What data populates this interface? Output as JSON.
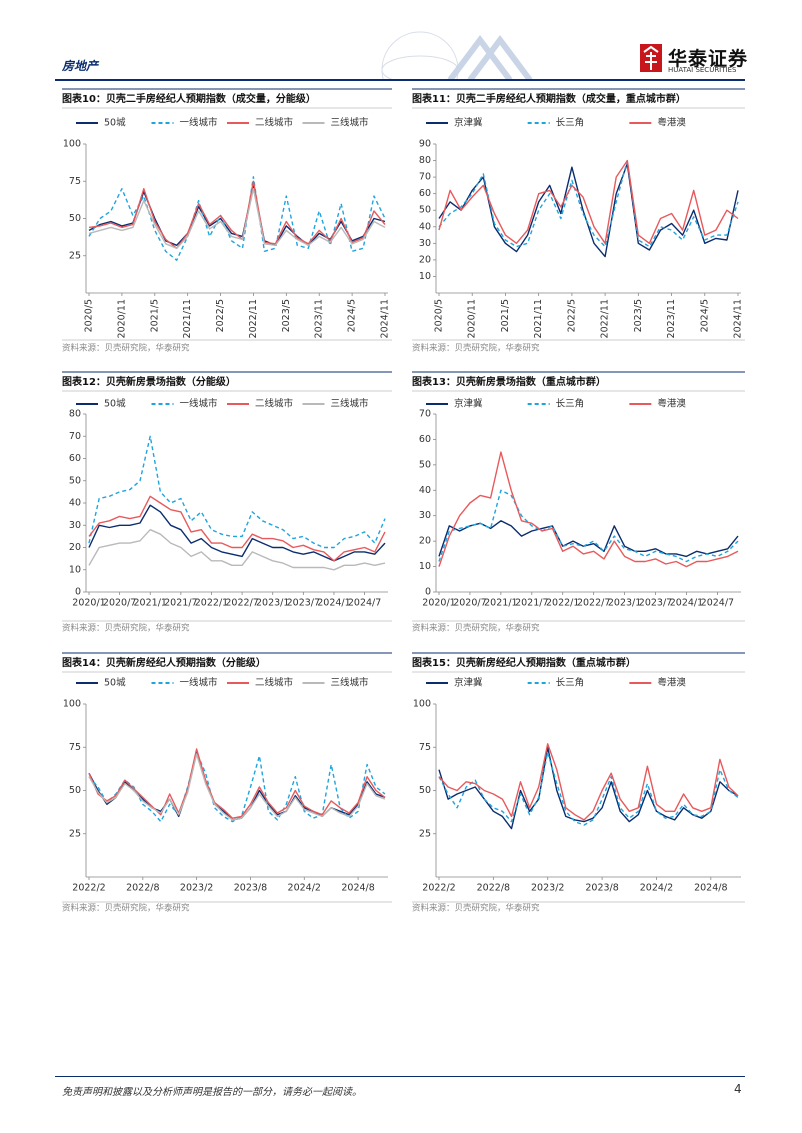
{
  "header": {
    "section": "房地产",
    "logo_cn": "华泰证券",
    "logo_en": "HUATAI SECURITIES"
  },
  "figures": [
    {
      "title": "图表10：贝壳二手房经纪人预期指数（成交量，分能级）",
      "source": "资料来源：贝壳研究院，华泰研究",
      "chart_data": {
        "type": "line",
        "categories": [
          "2020/5",
          null,
          null,
          "2020/11",
          null,
          null,
          "2021/5",
          null,
          null,
          "2021/11",
          null,
          null,
          "2022/5",
          null,
          null,
          "2022/11",
          null,
          null,
          "2023/5",
          null,
          null,
          "2023/11",
          null,
          null,
          "2024/5",
          null,
          null,
          "2024/11"
        ],
        "ylim": [
          0,
          100
        ],
        "yticks": [
          25,
          50,
          75,
          100
        ],
        "series": [
          {
            "name": "50城",
            "color": "#0b2d6f",
            "values": [
              42,
              46,
              48,
              45,
              47,
              68,
              50,
              35,
              32,
              40,
              58,
              45,
              50,
              40,
              38,
              72,
              35,
              32,
              45,
              38,
              32,
              40,
              36,
              48,
              35,
              38,
              50,
              48
            ]
          },
          {
            "name": "一线城市",
            "color": "#1fa4dc",
            "dash": true,
            "values": [
              38,
              50,
              55,
              70,
              52,
              65,
              42,
              28,
              22,
              38,
              62,
              38,
              52,
              35,
              30,
              78,
              28,
              30,
              65,
              32,
              30,
              55,
              32,
              60,
              28,
              30,
              65,
              50
            ]
          },
          {
            "name": "二线城市",
            "color": "#e8595b",
            "values": [
              44,
              45,
              47,
              44,
              46,
              70,
              48,
              36,
              30,
              40,
              60,
              46,
              52,
              42,
              36,
              75,
              34,
              33,
              48,
              37,
              33,
              42,
              35,
              50,
              34,
              37,
              55,
              46
            ]
          },
          {
            "name": "三线城市",
            "color": "#b9b9b9",
            "values": [
              40,
              42,
              44,
              42,
              44,
              62,
              46,
              33,
              30,
              38,
              55,
              43,
              48,
              38,
              36,
              70,
              33,
              32,
              42,
              36,
              32,
              38,
              34,
              44,
              33,
              36,
              48,
              44
            ]
          }
        ]
      }
    },
    {
      "title": "图表11：贝壳二手房经纪人预期指数（成交量，重点城市群）",
      "source": "资料来源：贝壳研究院，华泰研究",
      "chart_data": {
        "type": "line",
        "categories": [
          "2020/5",
          null,
          null,
          "2020/11",
          null,
          null,
          "2021/5",
          null,
          null,
          "2021/11",
          null,
          null,
          "2022/5",
          null,
          null,
          "2022/11",
          null,
          null,
          "2023/5",
          null,
          null,
          "2023/11",
          null,
          null,
          "2024/5",
          null,
          null,
          "2024/11"
        ],
        "ylim": [
          0,
          90
        ],
        "yticks": [
          10,
          20,
          30,
          40,
          50,
          60,
          70,
          80,
          90
        ],
        "series": [
          {
            "name": "京津冀",
            "color": "#0b2d6f",
            "values": [
              45,
              55,
              50,
              62,
              70,
              40,
              30,
              25,
              35,
              55,
              65,
              48,
              76,
              50,
              30,
              22,
              60,
              78,
              30,
              26,
              38,
              42,
              35,
              50,
              30,
              33,
              32,
              62
            ]
          },
          {
            "name": "长三角",
            "color": "#1fa4dc",
            "dash": true,
            "values": [
              40,
              48,
              52,
              60,
              72,
              42,
              32,
              28,
              30,
              50,
              60,
              45,
              68,
              48,
              35,
              28,
              55,
              80,
              32,
              28,
              40,
              38,
              32,
              46,
              32,
              35,
              35,
              55
            ]
          },
          {
            "name": "粤港澳",
            "color": "#e8595b",
            "values": [
              38,
              62,
              50,
              58,
              65,
              48,
              35,
              30,
              38,
              60,
              62,
              52,
              65,
              58,
              40,
              30,
              70,
              80,
              35,
              30,
              45,
              48,
              38,
              62,
              35,
              38,
              50,
              45
            ]
          }
        ]
      }
    },
    {
      "title": "图表12：贝壳新房景场指数（分能级）",
      "source": "资料来源：贝壳研究院，华泰研究",
      "chart_data": {
        "type": "line",
        "categories": [
          "2020/1",
          null,
          null,
          "2020/7",
          null,
          null,
          "2021/1",
          null,
          null,
          "2021/7",
          null,
          null,
          "2022/1",
          null,
          null,
          "2022/7",
          null,
          null,
          "2023/1",
          null,
          null,
          "2023/7",
          null,
          null,
          "2024/1",
          null,
          null,
          "2024/7",
          null,
          null
        ],
        "ylim": [
          0,
          80
        ],
        "yticks": [
          0,
          10,
          20,
          30,
          40,
          50,
          60,
          70,
          80
        ],
        "series": [
          {
            "name": "50城",
            "color": "#0b2d6f",
            "values": [
              20,
              30,
              29,
              30,
              30,
              31,
              39,
              36,
              30,
              28,
              22,
              24,
              20,
              18,
              17,
              16,
              24,
              22,
              20,
              20,
              18,
              17,
              18,
              16,
              14,
              16,
              18,
              18,
              17,
              22
            ]
          },
          {
            "name": "一线城市",
            "color": "#1fa4dc",
            "dash": true,
            "values": [
              22,
              42,
              43,
              45,
              46,
              50,
              70,
              45,
              40,
              42,
              32,
              36,
              28,
              26,
              25,
              25,
              36,
              32,
              30,
              28,
              24,
              25,
              22,
              20,
              20,
              24,
              25,
              27,
              22,
              33
            ]
          },
          {
            "name": "二线城市",
            "color": "#e8595b",
            "values": [
              25,
              31,
              32,
              34,
              33,
              34,
              43,
              40,
              37,
              36,
              27,
              28,
              22,
              22,
              20,
              20,
              26,
              24,
              24,
              23,
              20,
              21,
              19,
              18,
              14,
              18,
              19,
              20,
              18,
              27
            ]
          },
          {
            "name": "三线城市",
            "color": "#b9b9b9",
            "values": [
              12,
              20,
              21,
              22,
              22,
              23,
              28,
              26,
              22,
              20,
              16,
              18,
              14,
              14,
              12,
              12,
              18,
              16,
              14,
              13,
              11,
              11,
              11,
              11,
              10,
              12,
              12,
              13,
              12,
              13
            ]
          }
        ]
      }
    },
    {
      "title": "图表13：贝壳新房景场指数（重点城市群）",
      "source": "资料来源：贝壳研究院，华泰研究",
      "chart_data": {
        "type": "line",
        "categories": [
          "2020/1",
          null,
          null,
          "2020/7",
          null,
          null,
          "2021/1",
          null,
          null,
          "2021/7",
          null,
          null,
          "2022/1",
          null,
          null,
          "2022/7",
          null,
          null,
          "2023/1",
          null,
          null,
          "2023/7",
          null,
          null,
          "2024/1",
          null,
          null,
          "2024/7",
          null,
          null
        ],
        "ylim": [
          0,
          70
        ],
        "yticks": [
          0,
          10,
          20,
          30,
          40,
          50,
          60,
          70
        ],
        "series": [
          {
            "name": "京津冀",
            "color": "#0b2d6f",
            "values": [
              14,
              26,
              24,
              26,
              27,
              25,
              28,
              26,
              22,
              24,
              25,
              26,
              18,
              20,
              18,
              19,
              16,
              26,
              18,
              16,
              16,
              17,
              15,
              15,
              14,
              16,
              15,
              16,
              17,
              22
            ]
          },
          {
            "name": "长三角",
            "color": "#1fa4dc",
            "dash": true,
            "values": [
              12,
              24,
              25,
              26,
              27,
              25,
              40,
              38,
              30,
              26,
              24,
              26,
              18,
              19,
              18,
              20,
              16,
              22,
              17,
              16,
              14,
              16,
              15,
              14,
              12,
              14,
              15,
              14,
              16,
              20
            ]
          },
          {
            "name": "粤港澳",
            "color": "#e8595b",
            "values": [
              10,
              22,
              30,
              35,
              38,
              37,
              55,
              40,
              28,
              27,
              24,
              25,
              16,
              18,
              15,
              16,
              13,
              20,
              14,
              12,
              12,
              13,
              11,
              12,
              10,
              12,
              12,
              13,
              14,
              16
            ]
          }
        ]
      }
    },
    {
      "title": "图表14：贝壳新房经纪人预期指数（分能级）",
      "source": "资料来源：贝壳研究院，华泰研究",
      "chart_data": {
        "type": "line",
        "categories": [
          "2022/2",
          null,
          null,
          null,
          null,
          null,
          "2022/8",
          null,
          null,
          null,
          null,
          null,
          "2023/2",
          null,
          null,
          null,
          null,
          null,
          "2023/8",
          null,
          null,
          null,
          null,
          null,
          "2024/2",
          null,
          null,
          null,
          null,
          null,
          "2024/8",
          null,
          null,
          null
        ],
        "ylim": [
          0,
          100
        ],
        "yticks": [
          25,
          50,
          75,
          100
        ],
        "series": [
          {
            "name": "50城",
            "color": "#0b2d6f",
            "values": [
              60,
              50,
              42,
              46,
              55,
              50,
              45,
              40,
              38,
              45,
              35,
              50,
              73,
              55,
              42,
              38,
              33,
              34,
              40,
              50,
              42,
              36,
              38,
              47,
              40,
              38,
              35,
              40,
              38,
              36,
              42,
              55,
              48,
              46
            ]
          },
          {
            "name": "一线城市",
            "color": "#1fa4dc",
            "dash": true,
            "values": [
              58,
              52,
              43,
              48,
              56,
              52,
              42,
              38,
              32,
              42,
              36,
              52,
              72,
              60,
              40,
              35,
              32,
              35,
              52,
              70,
              38,
              33,
              42,
              58,
              38,
              34,
              36,
              65,
              40,
              34,
              38,
              65,
              52,
              48
            ]
          },
          {
            "name": "二线城市",
            "color": "#e8595b",
            "values": [
              60,
              48,
              44,
              47,
              56,
              51,
              46,
              41,
              36,
              48,
              37,
              51,
              74,
              56,
              43,
              39,
              34,
              35,
              42,
              52,
              43,
              37,
              40,
              50,
              41,
              38,
              36,
              44,
              40,
              37,
              43,
              58,
              50,
              46
            ]
          },
          {
            "name": "三线城市",
            "color": "#b9b9b9",
            "values": [
              58,
              49,
              43,
              46,
              54,
              50,
              44,
              40,
              37,
              45,
              36,
              49,
              71,
              54,
              42,
              37,
              33,
              34,
              40,
              48,
              41,
              35,
              38,
              46,
              39,
              37,
              35,
              40,
              37,
              35,
              41,
              54,
              47,
              45
            ]
          }
        ]
      }
    },
    {
      "title": "图表15：贝壳新房经纪人预期指数（重点城市群）",
      "source": "资料来源：贝壳研究院，华泰研究",
      "chart_data": {
        "type": "line",
        "categories": [
          "2022/2",
          null,
          null,
          null,
          null,
          null,
          "2022/8",
          null,
          null,
          null,
          null,
          null,
          "2023/2",
          null,
          null,
          null,
          null,
          null,
          "2023/8",
          null,
          null,
          null,
          null,
          null,
          "2024/2",
          null,
          null,
          null,
          null,
          null,
          "2024/8",
          null,
          null,
          null
        ],
        "ylim": [
          0,
          100
        ],
        "yticks": [
          25,
          50,
          75,
          100
        ],
        "series": [
          {
            "name": "京津冀",
            "color": "#0b2d6f",
            "values": [
              62,
              45,
              48,
              50,
              52,
              45,
              38,
              35,
              28,
              50,
              38,
              45,
              75,
              50,
              35,
              33,
              32,
              34,
              40,
              55,
              38,
              32,
              36,
              50,
              38,
              35,
              33,
              40,
              36,
              34,
              38,
              55,
              50,
              47
            ]
          },
          {
            "name": "长三角",
            "color": "#1fa4dc",
            "dash": true,
            "values": [
              58,
              48,
              40,
              52,
              56,
              45,
              40,
              38,
              32,
              48,
              36,
              46,
              72,
              54,
              38,
              32,
              30,
              33,
              45,
              58,
              40,
              34,
              38,
              54,
              38,
              34,
              35,
              42,
              36,
              35,
              38,
              62,
              50,
              46
            ]
          },
          {
            "name": "粤港澳",
            "color": "#e8595b",
            "values": [
              58,
              52,
              50,
              55,
              54,
              50,
              48,
              45,
              35,
              55,
              40,
              52,
              77,
              62,
              40,
              36,
              33,
              38,
              50,
              60,
              45,
              38,
              40,
              64,
              42,
              38,
              38,
              48,
              40,
              38,
              40,
              68,
              52,
              47
            ]
          }
        ]
      }
    }
  ],
  "footer": {
    "disclaimer": "免责声明和披露以及分析师声明是报告的一部分，请务必一起阅读。",
    "page": "4"
  }
}
